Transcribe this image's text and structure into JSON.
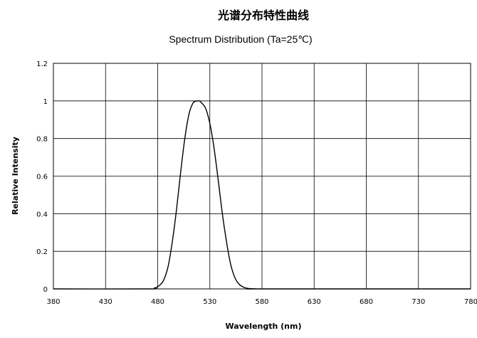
{
  "chart_data": {
    "type": "line",
    "title": "光谱分布特性曲线",
    "subtitle": "Spectrum Distribution (Ta=25℃)",
    "xlabel": "Wavelength (nm)",
    "ylabel": "Relative Intensity",
    "xlim": [
      380,
      780
    ],
    "ylim": [
      0,
      1.2
    ],
    "x_ticks": [
      380,
      430,
      480,
      530,
      580,
      630,
      680,
      730,
      780
    ],
    "y_ticks": [
      "0",
      "0.2",
      "0.4",
      "0.6",
      "0.8",
      "1",
      "1.2"
    ],
    "grid": true,
    "series": [
      {
        "color": "#000000",
        "x": [
          380,
          470,
          477,
          482,
          486,
          490,
          494,
          498,
          502,
          506,
          510,
          514,
          518,
          520,
          522,
          526,
          530,
          534,
          538,
          542,
          546,
          550,
          554,
          558,
          562,
          566,
          570,
          575,
          582,
          780
        ],
        "y": [
          0,
          0,
          0.005,
          0.02,
          0.05,
          0.12,
          0.25,
          0.42,
          0.62,
          0.8,
          0.93,
          0.99,
          1.0,
          1.0,
          0.99,
          0.96,
          0.88,
          0.75,
          0.58,
          0.4,
          0.25,
          0.13,
          0.06,
          0.025,
          0.01,
          0.003,
          0.001,
          0,
          0,
          0
        ]
      }
    ]
  }
}
